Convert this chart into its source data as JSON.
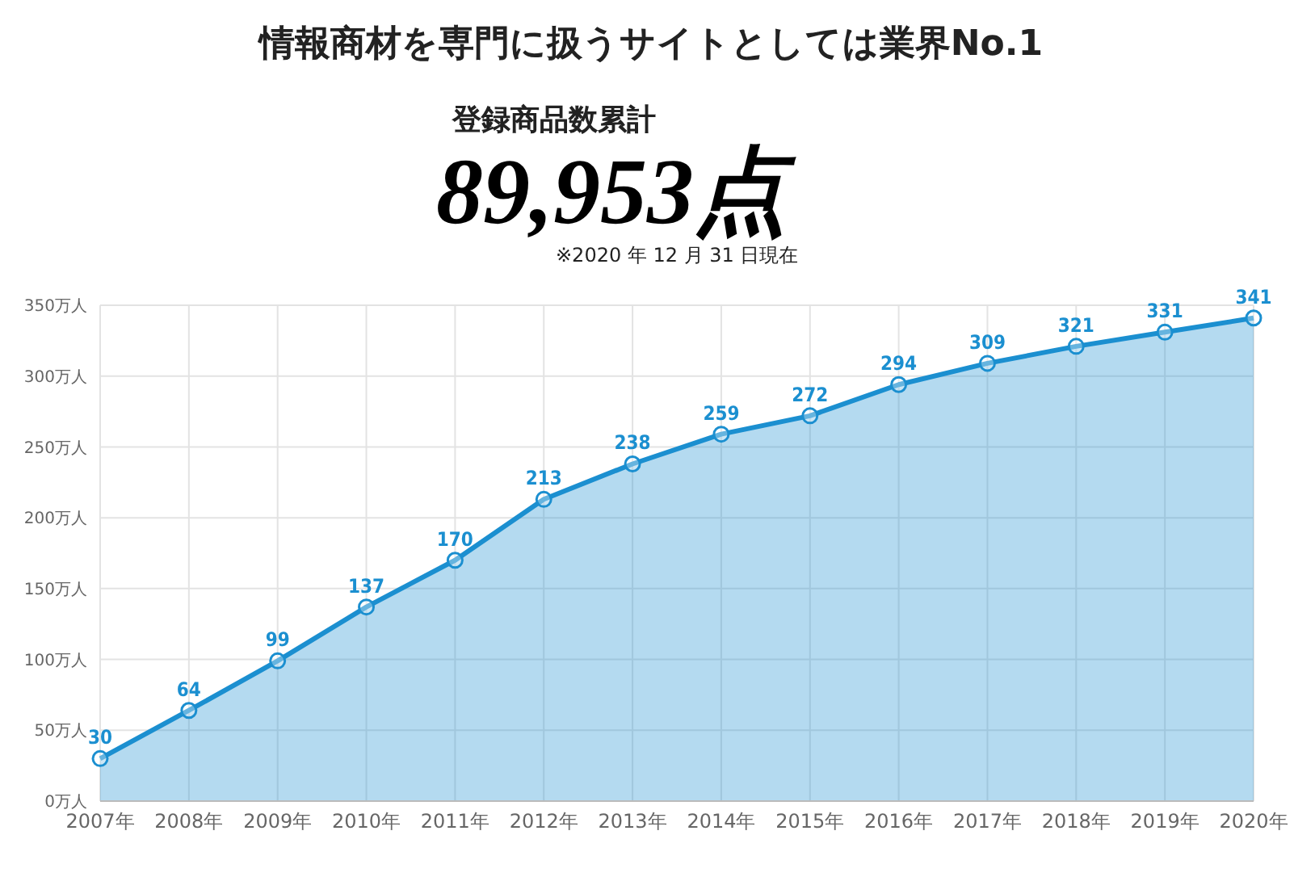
{
  "chart_data": {
    "type": "area",
    "title": "情報商材を専門に扱うサイトとしては業界No.1",
    "subtitle": "登録商品数累計",
    "annotations": [
      "89,953点",
      "※2020 年 12 月 31 日現在"
    ],
    "categories": [
      "2007年",
      "2008年",
      "2009年",
      "2010年",
      "2011年",
      "2012年",
      "2013年",
      "2014年",
      "2015年",
      "2016年",
      "2017年",
      "2018年",
      "2019年",
      "2020年"
    ],
    "series": [
      {
        "color": "#1b8fd0",
        "values": [
          30,
          64,
          99,
          137,
          170,
          213,
          238,
          259,
          272,
          294,
          309,
          321,
          331,
          341
        ]
      }
    ],
    "ylim": [
      0,
      350
    ],
    "yticks": [
      {
        "value": 0,
        "label": "0万人"
      },
      {
        "value": 50,
        "label": "50万人"
      },
      {
        "value": 100,
        "label": "100万人"
      },
      {
        "value": 150,
        "label": "150万人"
      },
      {
        "value": 200,
        "label": "200万人"
      },
      {
        "value": 250,
        "label": "250万人"
      },
      {
        "value": 300,
        "label": "300万人"
      },
      {
        "value": 350,
        "label": "350万人"
      }
    ],
    "grid": true,
    "marker": "circle",
    "data_labels": true
  }
}
